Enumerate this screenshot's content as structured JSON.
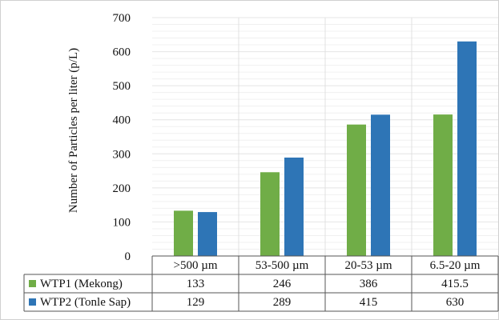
{
  "chart_data": {
    "type": "bar",
    "title": "",
    "xlabel": "",
    "ylabel": "Number of Particles per liter (p/L)",
    "ylim": [
      0,
      700
    ],
    "yticks": [
      0,
      100,
      200,
      300,
      400,
      500,
      600,
      700
    ],
    "ytick_labels": [
      "0",
      "100",
      "200",
      "300",
      "400",
      "500",
      "600",
      "700"
    ],
    "categories": [
      ">500 µm",
      "53-500 µm",
      "20-53 µm",
      "6.5-20 µm"
    ],
    "grid": "horizontal minor and vertical category separators",
    "legend": "data table below chart",
    "series": [
      {
        "name": "WTP1 (Mekong)",
        "color": "#70AD47",
        "values": [
          133,
          246,
          386,
          415.5
        ],
        "value_labels": [
          "133",
          "246",
          "386",
          "415.5"
        ]
      },
      {
        "name": "WTP2 (Tonle Sap)",
        "color": "#2E75B6",
        "values": [
          129,
          289,
          415,
          630
        ],
        "value_labels": [
          "129",
          "289",
          "415",
          "630"
        ]
      }
    ]
  }
}
